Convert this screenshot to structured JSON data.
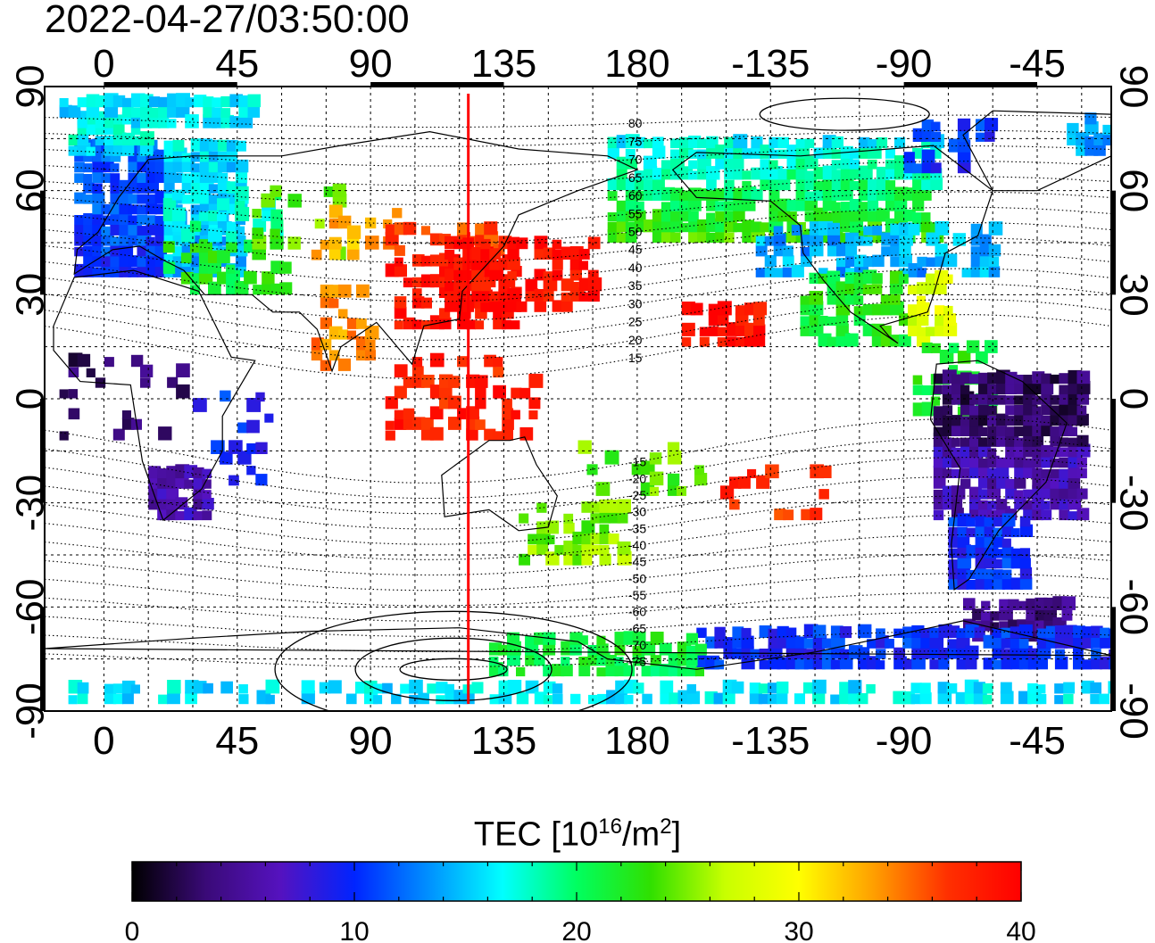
{
  "title": "2022-04-27/03:50:00",
  "map": {
    "top_lon_labels": [
      "0",
      "45",
      "90",
      "135",
      "180",
      "-135",
      "-90",
      "-45"
    ],
    "bottom_lon_labels": [
      "0",
      "45",
      "90",
      "135",
      "180",
      "-135",
      "-90",
      "-45"
    ],
    "left_lat_labels": [
      "90",
      "60",
      "30",
      "0",
      "-30",
      "-60",
      "-90"
    ],
    "right_lat_labels": [
      "90",
      "60",
      "30",
      "0",
      "-30",
      "-60",
      "-90"
    ],
    "lon_range": [
      -20,
      340
    ],
    "lat_range": [
      -90,
      90
    ],
    "meridian_marker": {
      "lon": 123,
      "color": "#ff0000"
    },
    "dip_labels": [
      "80",
      "75",
      "70",
      "65",
      "60",
      "55",
      "50",
      "45",
      "40",
      "35",
      "30",
      "25",
      "20",
      "15",
      "-15",
      "-20",
      "-25",
      "-30",
      "-35",
      "-40",
      "-45",
      "-50",
      "-55",
      "-60",
      "-65",
      "-70",
      "-75"
    ]
  },
  "colorbar": {
    "title_prefix": "TEC  [10",
    "title_exp1": "16",
    "title_mid": "/m",
    "title_exp2": "2",
    "title_suffix": "]",
    "ticks": [
      "0",
      "10",
      "20",
      "30",
      "40"
    ],
    "min": 0,
    "max": 40,
    "colors": [
      "#000000",
      "#3a0a78",
      "#5512bf",
      "#0024ff",
      "#0090ff",
      "#00ffff",
      "#00ff60",
      "#30e000",
      "#c8ff00",
      "#ffff00",
      "#ffa000",
      "#ff3000",
      "#ff0000"
    ]
  }
}
